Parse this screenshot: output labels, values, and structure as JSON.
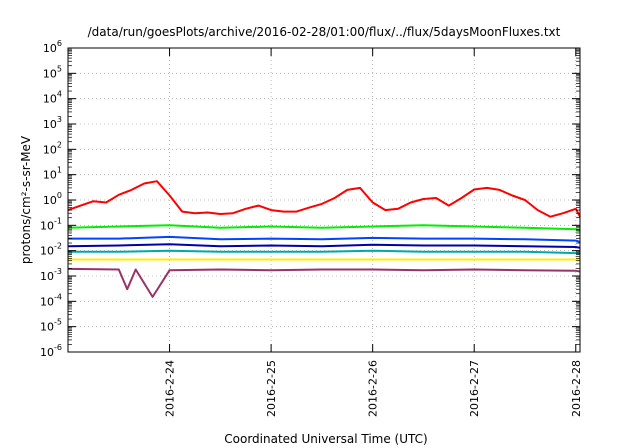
{
  "chart_data": {
    "type": "line",
    "title": "/data/run/goesPlots/archive/2016-02-28/01:00/flux/../flux/5daysMoonFluxes.txt",
    "xlabel": "Coordinated Universal Time (UTC)",
    "ylabel": "protons/cm²-s-sr-MeV",
    "yscale": "log",
    "grid": true,
    "x_tick_labels": [
      "2016-2-24",
      "2016-2-25",
      "2016-2-26",
      "2016-2-27",
      "2016-2-28"
    ],
    "y_tick_labels": [
      {
        "base": "10",
        "exp": "-6"
      },
      {
        "base": "10",
        "exp": "-5"
      },
      {
        "base": "10",
        "exp": "-4"
      },
      {
        "base": "10",
        "exp": "-3"
      },
      {
        "base": "10",
        "exp": "-2"
      },
      {
        "base": "10",
        "exp": "-1"
      },
      {
        "base": "10",
        "exp": "0"
      },
      {
        "base": "10",
        "exp": "1"
      },
      {
        "base": "10",
        "exp": "2"
      },
      {
        "base": "10",
        "exp": "3"
      },
      {
        "base": "10",
        "exp": "4"
      },
      {
        "base": "10",
        "exp": "5"
      },
      {
        "base": "10",
        "exp": "6"
      }
    ],
    "xlim": [
      "2016-02-23 00:00",
      "2016-02-28 01:00"
    ],
    "ylim": [
      1e-06,
      1000000.0
    ],
    "series": [
      {
        "color": "#ff0000",
        "x": [
          "2016-02-23 00:00",
          "2016-02-23 03:00",
          "2016-02-23 06:00",
          "2016-02-23 09:00",
          "2016-02-23 12:00",
          "2016-02-23 15:00",
          "2016-02-23 18:00",
          "2016-02-23 21:00",
          "2016-02-24 00:00",
          "2016-02-24 03:00",
          "2016-02-24 06:00",
          "2016-02-24 09:00",
          "2016-02-24 12:00",
          "2016-02-24 15:00",
          "2016-02-24 18:00",
          "2016-02-24 21:00",
          "2016-02-25 00:00",
          "2016-02-25 03:00",
          "2016-02-25 06:00",
          "2016-02-25 09:00",
          "2016-02-25 12:00",
          "2016-02-25 15:00",
          "2016-02-25 18:00",
          "2016-02-25 21:00",
          "2016-02-26 00:00",
          "2016-02-26 03:00",
          "2016-02-26 06:00",
          "2016-02-26 09:00",
          "2016-02-26 12:00",
          "2016-02-26 15:00",
          "2016-02-26 18:00",
          "2016-02-26 21:00",
          "2016-02-27 00:00",
          "2016-02-27 03:00",
          "2016-02-27 06:00",
          "2016-02-27 09:00",
          "2016-02-27 12:00",
          "2016-02-27 15:00",
          "2016-02-27 18:00",
          "2016-02-27 21:00",
          "2016-02-28 00:00",
          "2016-02-28 01:00"
        ],
        "y": [
          0.4,
          0.6,
          0.9,
          0.8,
          1.6,
          2.5,
          4.5,
          5.5,
          1.5,
          0.35,
          0.3,
          0.32,
          0.28,
          0.3,
          0.45,
          0.6,
          0.4,
          0.35,
          0.35,
          0.5,
          0.7,
          1.2,
          2.5,
          3.0,
          0.8,
          0.4,
          0.45,
          0.8,
          1.1,
          1.2,
          0.6,
          1.2,
          2.6,
          3.0,
          2.5,
          1.5,
          1.0,
          0.4,
          0.22,
          0.3,
          0.45,
          0.22
        ]
      },
      {
        "color": "#00ee00",
        "x": [
          "2016-02-23 00:00",
          "2016-02-23 12:00",
          "2016-02-24 00:00",
          "2016-02-24 12:00",
          "2016-02-25 00:00",
          "2016-02-25 12:00",
          "2016-02-26 00:00",
          "2016-02-26 12:00",
          "2016-02-27 00:00",
          "2016-02-27 12:00",
          "2016-02-28 00:00",
          "2016-02-28 01:00"
        ],
        "y": [
          0.08,
          0.09,
          0.1,
          0.08,
          0.09,
          0.08,
          0.09,
          0.1,
          0.09,
          0.08,
          0.07,
          0.06
        ]
      },
      {
        "color": "#0044ff",
        "x": [
          "2016-02-23 00:00",
          "2016-02-23 12:00",
          "2016-02-24 00:00",
          "2016-02-24 12:00",
          "2016-02-25 00:00",
          "2016-02-25 12:00",
          "2016-02-26 00:00",
          "2016-02-26 12:00",
          "2016-02-27 00:00",
          "2016-02-27 12:00",
          "2016-02-28 00:00",
          "2016-02-28 01:00"
        ],
        "y": [
          0.03,
          0.03,
          0.035,
          0.028,
          0.03,
          0.028,
          0.032,
          0.03,
          0.03,
          0.028,
          0.025,
          0.022
        ]
      },
      {
        "color": "#0000aa",
        "x": [
          "2016-02-23 00:00",
          "2016-02-23 12:00",
          "2016-02-24 00:00",
          "2016-02-24 12:00",
          "2016-02-25 00:00",
          "2016-02-25 12:00",
          "2016-02-26 00:00",
          "2016-02-26 12:00",
          "2016-02-27 00:00",
          "2016-02-27 12:00",
          "2016-02-28 00:00",
          "2016-02-28 01:00"
        ],
        "y": [
          0.015,
          0.016,
          0.018,
          0.015,
          0.016,
          0.015,
          0.017,
          0.016,
          0.016,
          0.015,
          0.014,
          0.013
        ]
      },
      {
        "color": "#00aaaa",
        "x": [
          "2016-02-23 00:00",
          "2016-02-23 12:00",
          "2016-02-24 00:00",
          "2016-02-24 12:00",
          "2016-02-25 00:00",
          "2016-02-25 12:00",
          "2016-02-26 00:00",
          "2016-02-26 12:00",
          "2016-02-27 00:00",
          "2016-02-27 12:00",
          "2016-02-28 00:00",
          "2016-02-28 01:00"
        ],
        "y": [
          0.009,
          0.009,
          0.01,
          0.009,
          0.009,
          0.009,
          0.01,
          0.009,
          0.009,
          0.009,
          0.008,
          0.008
        ]
      },
      {
        "color": "#ffee00",
        "x": [
          "2016-02-23 00:00",
          "2016-02-23 12:00",
          "2016-02-24 00:00",
          "2016-02-24 12:00",
          "2016-02-25 00:00",
          "2016-02-25 12:00",
          "2016-02-26 00:00",
          "2016-02-26 12:00",
          "2016-02-27 00:00",
          "2016-02-27 12:00",
          "2016-02-28 00:00",
          "2016-02-28 01:00"
        ],
        "y": [
          0.0045,
          0.0045,
          0.0045,
          0.0045,
          0.0045,
          0.0045,
          0.0045,
          0.0045,
          0.0045,
          0.0045,
          0.0045,
          0.0045
        ]
      },
      {
        "color": "#993366",
        "x": [
          "2016-02-23 00:00",
          "2016-02-23 12:00",
          "2016-02-23 14:00",
          "2016-02-23 16:00",
          "2016-02-23 20:00",
          "2016-02-24 00:00",
          "2016-02-24 12:00",
          "2016-02-25 00:00",
          "2016-02-25 12:00",
          "2016-02-26 00:00",
          "2016-02-26 12:00",
          "2016-02-27 00:00",
          "2016-02-27 12:00",
          "2016-02-28 00:00",
          "2016-02-28 01:00"
        ],
        "y": [
          0.0019,
          0.0018,
          0.0003,
          0.0018,
          0.00015,
          0.0017,
          0.0018,
          0.0017,
          0.0018,
          0.0018,
          0.0017,
          0.0018,
          0.0017,
          0.0016,
          0.0015
        ]
      }
    ]
  }
}
